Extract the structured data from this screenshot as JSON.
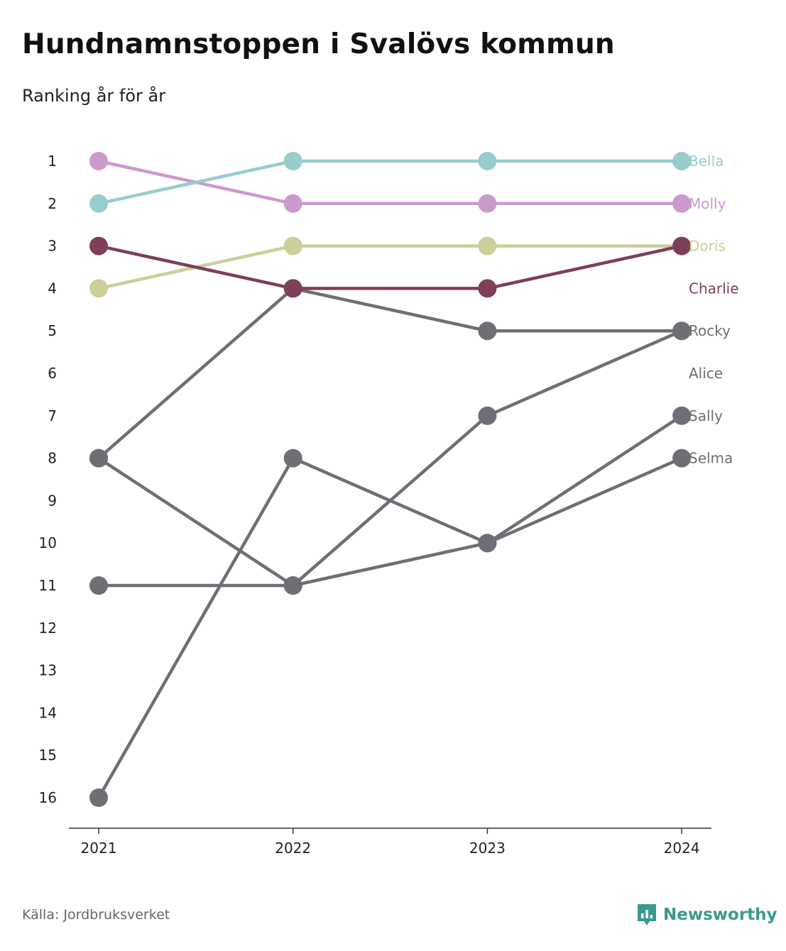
{
  "title": "Hundnamnstoppen i Svalövs kommun",
  "subtitle": "Ranking år för år",
  "source": "Källa: Jordbruksverket",
  "brand": {
    "name": "Newsworthy",
    "icon": "bar-chart-badge-icon",
    "color": "#3a9a8f"
  },
  "chart_data": {
    "type": "line",
    "x": [
      "2021",
      "2022",
      "2023",
      "2024"
    ],
    "y_ticks": [
      "1",
      "2",
      "3",
      "4",
      "5",
      "6",
      "7",
      "8",
      "9",
      "10",
      "11",
      "12",
      "13",
      "14",
      "15",
      "16"
    ],
    "y_reversed": true,
    "ylim": [
      1,
      16
    ],
    "grid": false,
    "legend": "labels at right end of lines",
    "series": [
      {
        "name": "Rocky",
        "values": [
          16,
          8,
          10,
          7
        ],
        "color": "#6e6e75",
        "label_rank": 5
      },
      {
        "name": "Alice",
        "values": [
          8,
          11,
          10,
          8
        ],
        "color": "#6e6e75",
        "label_rank": 6
      },
      {
        "name": "Sally",
        "values": [
          11,
          11,
          7,
          5
        ],
        "color": "#6e6e75",
        "label_rank": 7
      },
      {
        "name": "Selma",
        "values": [
          8,
          4,
          5,
          5
        ],
        "color": "#6e6e75",
        "label_rank": 8
      },
      {
        "name": "Doris",
        "values": [
          4,
          3,
          3,
          3
        ],
        "color": "#cccf9a",
        "label_rank": 3
      },
      {
        "name": "Charlie",
        "values": [
          3,
          4,
          4,
          3
        ],
        "color": "#7e3f58",
        "label_rank": 4
      },
      {
        "name": "Molly",
        "values": [
          1,
          2,
          2,
          2
        ],
        "color": "#cc99cc",
        "label_rank": 2
      },
      {
        "name": "Bella",
        "values": [
          2,
          1,
          1,
          1
        ],
        "color": "#99cccc",
        "label_rank": 1
      }
    ]
  }
}
